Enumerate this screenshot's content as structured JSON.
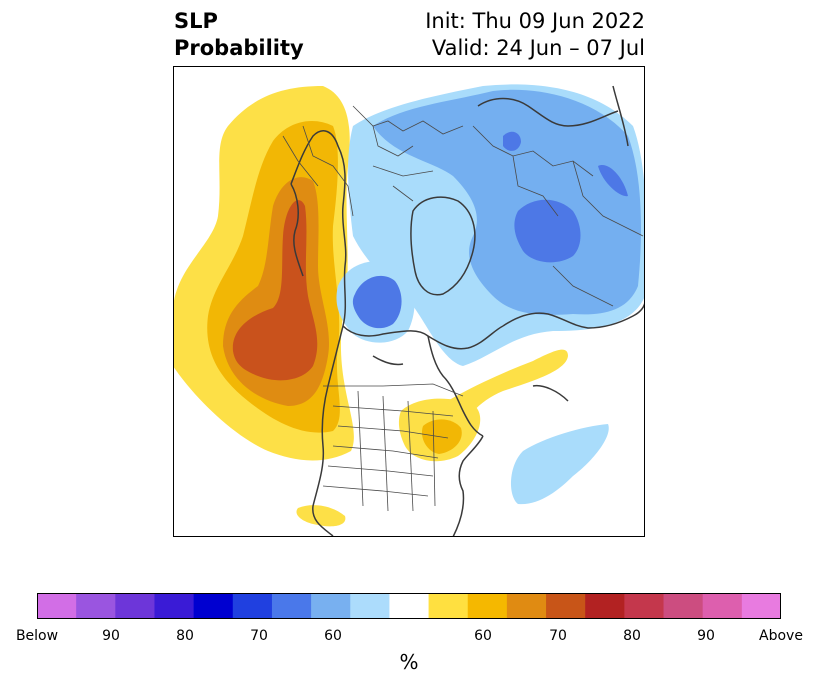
{
  "header": {
    "title_line1": "SLP",
    "title_line2": "Probability",
    "init_text": "Init: Thu 09 Jun 2022",
    "valid_text": "Valid: 24 Jun – 07 Jul"
  },
  "map": {
    "projection": "polar stereographic, North America / Arctic",
    "colors": {
      "light_yellow": "#fde047",
      "yellow": "#f2b705",
      "orange": "#df8c12",
      "dark_orange": "#c9521c",
      "light_blue": "#a9dcfb",
      "blue": "#74aff0",
      "mid_blue": "#4d78e6",
      "coast": "#3a3a3a",
      "border": "#4a4a4a"
    }
  },
  "colorbar": {
    "colors": [
      "#d26ee6",
      "#9a55e0",
      "#6d36d9",
      "#3a1bd6",
      "#0000d0",
      "#2040e0",
      "#4a78ea",
      "#78b0f0",
      "#acdcfc",
      "#ffffff",
      "#ffe040",
      "#f5b800",
      "#e08b12",
      "#c85518",
      "#b22222",
      "#c4374c",
      "#cc4d80",
      "#dd5fae",
      "#e87be0"
    ],
    "tick_labels": [
      "Below",
      "90",
      "80",
      "70",
      "60",
      "60",
      "70",
      "80",
      "90",
      "Above"
    ],
    "unit_label": "%"
  }
}
